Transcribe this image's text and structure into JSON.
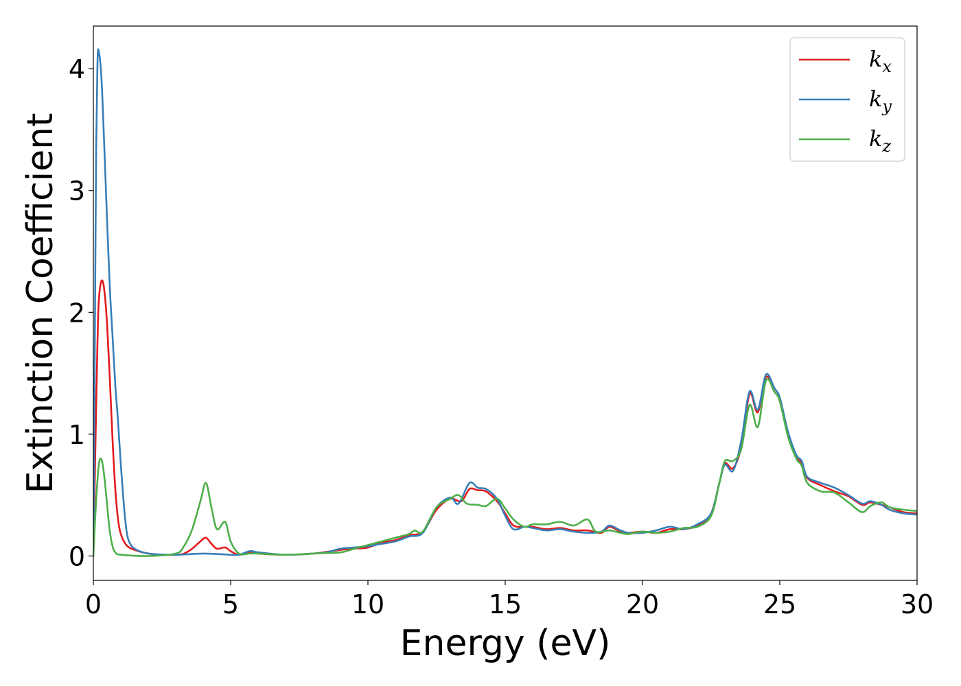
{
  "chart_data": {
    "type": "line",
    "xlabel": "Energy (eV)",
    "ylabel": "Extinction Coefficient",
    "xlim": [
      0,
      30
    ],
    "ylim": [
      -0.2,
      4.35
    ],
    "xticks": [
      0,
      5,
      10,
      15,
      20,
      25,
      30
    ],
    "yticks": [
      0,
      1,
      2,
      3,
      4
    ],
    "grid": false,
    "legend_position": "top-right",
    "series": [
      {
        "name": "k",
        "subscript": "x",
        "color": "#e41a1c",
        "points": [
          [
            0.0,
            0.0
          ],
          [
            0.05,
            0.6
          ],
          [
            0.1,
            1.2
          ],
          [
            0.15,
            1.75
          ],
          [
            0.2,
            2.1
          ],
          [
            0.3,
            2.26
          ],
          [
            0.4,
            2.18
          ],
          [
            0.5,
            1.9
          ],
          [
            0.6,
            1.45
          ],
          [
            0.7,
            0.95
          ],
          [
            0.8,
            0.55
          ],
          [
            0.9,
            0.3
          ],
          [
            1.0,
            0.18
          ],
          [
            1.2,
            0.09
          ],
          [
            1.5,
            0.05
          ],
          [
            2.0,
            0.02
          ],
          [
            2.5,
            0.01
          ],
          [
            3.0,
            0.01
          ],
          [
            3.3,
            0.02
          ],
          [
            3.6,
            0.06
          ],
          [
            3.9,
            0.12
          ],
          [
            4.1,
            0.15
          ],
          [
            4.3,
            0.1
          ],
          [
            4.5,
            0.06
          ],
          [
            4.8,
            0.07
          ],
          [
            5.0,
            0.04
          ],
          [
            5.3,
            0.01
          ],
          [
            5.7,
            0.03
          ],
          [
            6.0,
            0.02
          ],
          [
            7.0,
            0.01
          ],
          [
            8.0,
            0.02
          ],
          [
            9.0,
            0.05
          ],
          [
            9.5,
            0.06
          ],
          [
            10.0,
            0.07
          ],
          [
            10.5,
            0.11
          ],
          [
            11.0,
            0.13
          ],
          [
            11.5,
            0.17
          ],
          [
            12.0,
            0.2
          ],
          [
            12.5,
            0.38
          ],
          [
            13.0,
            0.47
          ],
          [
            13.4,
            0.45
          ],
          [
            13.7,
            0.55
          ],
          [
            14.0,
            0.54
          ],
          [
            14.3,
            0.53
          ],
          [
            14.7,
            0.45
          ],
          [
            15.0,
            0.35
          ],
          [
            15.3,
            0.25
          ],
          [
            15.7,
            0.24
          ],
          [
            16.0,
            0.24
          ],
          [
            16.5,
            0.22
          ],
          [
            17.0,
            0.23
          ],
          [
            17.5,
            0.21
          ],
          [
            18.0,
            0.21
          ],
          [
            18.5,
            0.19
          ],
          [
            18.8,
            0.24
          ],
          [
            19.2,
            0.2
          ],
          [
            19.5,
            0.19
          ],
          [
            20.0,
            0.2
          ],
          [
            20.5,
            0.19
          ],
          [
            21.0,
            0.22
          ],
          [
            21.5,
            0.22
          ],
          [
            22.0,
            0.25
          ],
          [
            22.5,
            0.35
          ],
          [
            22.8,
            0.6
          ],
          [
            23.0,
            0.76
          ],
          [
            23.3,
            0.72
          ],
          [
            23.6,
            0.9
          ],
          [
            23.9,
            1.33
          ],
          [
            24.2,
            1.18
          ],
          [
            24.5,
            1.47
          ],
          [
            24.8,
            1.35
          ],
          [
            25.0,
            1.28
          ],
          [
            25.3,
            1.0
          ],
          [
            25.6,
            0.82
          ],
          [
            25.8,
            0.76
          ],
          [
            26.0,
            0.64
          ],
          [
            26.5,
            0.58
          ],
          [
            27.0,
            0.53
          ],
          [
            27.5,
            0.49
          ],
          [
            28.0,
            0.42
          ],
          [
            28.3,
            0.44
          ],
          [
            28.7,
            0.42
          ],
          [
            29.0,
            0.4
          ],
          [
            29.5,
            0.36
          ],
          [
            30.0,
            0.35
          ]
        ]
      },
      {
        "name": "k",
        "subscript": "y",
        "color": "#377eb8",
        "points": [
          [
            0.0,
            0.0
          ],
          [
            0.05,
            1.6
          ],
          [
            0.1,
            3.3
          ],
          [
            0.15,
            4.05
          ],
          [
            0.2,
            4.14
          ],
          [
            0.3,
            3.9
          ],
          [
            0.4,
            3.35
          ],
          [
            0.5,
            2.75
          ],
          [
            0.6,
            2.2
          ],
          [
            0.7,
            1.8
          ],
          [
            0.8,
            1.4
          ],
          [
            0.9,
            1.1
          ],
          [
            1.0,
            0.75
          ],
          [
            1.1,
            0.45
          ],
          [
            1.2,
            0.22
          ],
          [
            1.3,
            0.12
          ],
          [
            1.5,
            0.06
          ],
          [
            2.0,
            0.02
          ],
          [
            3.0,
            0.01
          ],
          [
            4.0,
            0.02
          ],
          [
            5.0,
            0.01
          ],
          [
            5.3,
            0.01
          ],
          [
            5.7,
            0.04
          ],
          [
            6.0,
            0.03
          ],
          [
            7.0,
            0.01
          ],
          [
            8.0,
            0.02
          ],
          [
            8.5,
            0.03
          ],
          [
            9.0,
            0.06
          ],
          [
            9.5,
            0.07
          ],
          [
            10.0,
            0.08
          ],
          [
            10.5,
            0.1
          ],
          [
            11.0,
            0.12
          ],
          [
            11.5,
            0.16
          ],
          [
            12.0,
            0.19
          ],
          [
            12.5,
            0.4
          ],
          [
            13.0,
            0.48
          ],
          [
            13.3,
            0.43
          ],
          [
            13.7,
            0.6
          ],
          [
            14.0,
            0.56
          ],
          [
            14.3,
            0.55
          ],
          [
            14.7,
            0.47
          ],
          [
            15.0,
            0.33
          ],
          [
            15.3,
            0.22
          ],
          [
            15.7,
            0.24
          ],
          [
            16.0,
            0.23
          ],
          [
            16.5,
            0.21
          ],
          [
            17.0,
            0.22
          ],
          [
            17.5,
            0.2
          ],
          [
            18.0,
            0.19
          ],
          [
            18.5,
            0.2
          ],
          [
            18.8,
            0.25
          ],
          [
            19.2,
            0.21
          ],
          [
            19.5,
            0.19
          ],
          [
            20.0,
            0.19
          ],
          [
            20.5,
            0.21
          ],
          [
            21.0,
            0.24
          ],
          [
            21.5,
            0.22
          ],
          [
            22.0,
            0.26
          ],
          [
            22.5,
            0.35
          ],
          [
            22.8,
            0.6
          ],
          [
            23.0,
            0.75
          ],
          [
            23.3,
            0.7
          ],
          [
            23.6,
            0.95
          ],
          [
            23.9,
            1.35
          ],
          [
            24.2,
            1.2
          ],
          [
            24.5,
            1.49
          ],
          [
            24.8,
            1.38
          ],
          [
            25.0,
            1.3
          ],
          [
            25.3,
            1.02
          ],
          [
            25.6,
            0.83
          ],
          [
            25.8,
            0.78
          ],
          [
            26.0,
            0.65
          ],
          [
            26.5,
            0.6
          ],
          [
            27.0,
            0.56
          ],
          [
            27.5,
            0.5
          ],
          [
            28.0,
            0.43
          ],
          [
            28.3,
            0.45
          ],
          [
            28.7,
            0.42
          ],
          [
            29.0,
            0.38
          ],
          [
            29.5,
            0.35
          ],
          [
            30.0,
            0.34
          ]
        ]
      },
      {
        "name": "k",
        "subscript": "z",
        "color": "#4daf4a",
        "points": [
          [
            0.0,
            0.0
          ],
          [
            0.1,
            0.45
          ],
          [
            0.2,
            0.75
          ],
          [
            0.3,
            0.79
          ],
          [
            0.4,
            0.65
          ],
          [
            0.5,
            0.42
          ],
          [
            0.6,
            0.2
          ],
          [
            0.7,
            0.08
          ],
          [
            0.8,
            0.03
          ],
          [
            1.0,
            0.01
          ],
          [
            2.0,
            0.0
          ],
          [
            3.0,
            0.02
          ],
          [
            3.3,
            0.08
          ],
          [
            3.6,
            0.22
          ],
          [
            3.9,
            0.45
          ],
          [
            4.1,
            0.6
          ],
          [
            4.3,
            0.4
          ],
          [
            4.5,
            0.22
          ],
          [
            4.8,
            0.28
          ],
          [
            5.0,
            0.12
          ],
          [
            5.3,
            0.02
          ],
          [
            5.7,
            0.02
          ],
          [
            6.0,
            0.02
          ],
          [
            7.0,
            0.01
          ],
          [
            8.0,
            0.02
          ],
          [
            9.0,
            0.03
          ],
          [
            9.5,
            0.06
          ],
          [
            10.0,
            0.09
          ],
          [
            10.5,
            0.12
          ],
          [
            11.0,
            0.15
          ],
          [
            11.5,
            0.18
          ],
          [
            11.7,
            0.21
          ],
          [
            12.0,
            0.2
          ],
          [
            12.5,
            0.4
          ],
          [
            13.0,
            0.47
          ],
          [
            13.3,
            0.5
          ],
          [
            13.6,
            0.43
          ],
          [
            14.0,
            0.42
          ],
          [
            14.3,
            0.41
          ],
          [
            14.7,
            0.47
          ],
          [
            15.0,
            0.39
          ],
          [
            15.3,
            0.3
          ],
          [
            15.7,
            0.24
          ],
          [
            16.0,
            0.26
          ],
          [
            16.5,
            0.26
          ],
          [
            17.0,
            0.28
          ],
          [
            17.5,
            0.25
          ],
          [
            18.0,
            0.3
          ],
          [
            18.3,
            0.2
          ],
          [
            18.8,
            0.21
          ],
          [
            19.2,
            0.19
          ],
          [
            19.5,
            0.18
          ],
          [
            20.0,
            0.2
          ],
          [
            20.5,
            0.19
          ],
          [
            21.0,
            0.2
          ],
          [
            21.5,
            0.23
          ],
          [
            22.0,
            0.24
          ],
          [
            22.5,
            0.33
          ],
          [
            22.8,
            0.6
          ],
          [
            23.0,
            0.78
          ],
          [
            23.3,
            0.78
          ],
          [
            23.6,
            0.88
          ],
          [
            23.9,
            1.24
          ],
          [
            24.2,
            1.06
          ],
          [
            24.5,
            1.44
          ],
          [
            24.8,
            1.35
          ],
          [
            25.0,
            1.27
          ],
          [
            25.3,
            0.98
          ],
          [
            25.6,
            0.8
          ],
          [
            25.8,
            0.74
          ],
          [
            26.0,
            0.6
          ],
          [
            26.5,
            0.53
          ],
          [
            27.0,
            0.52
          ],
          [
            27.5,
            0.44
          ],
          [
            28.0,
            0.36
          ],
          [
            28.3,
            0.41
          ],
          [
            28.7,
            0.44
          ],
          [
            29.0,
            0.4
          ],
          [
            29.5,
            0.38
          ],
          [
            30.0,
            0.37
          ]
        ]
      }
    ]
  }
}
